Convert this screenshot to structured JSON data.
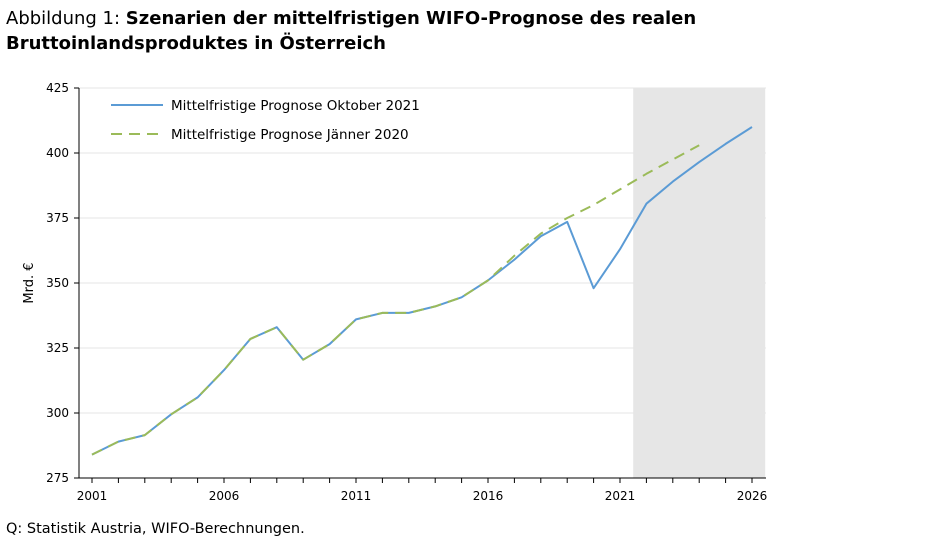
{
  "title": {
    "prefix": "Abbildung 1: ",
    "main": "Szenarien der mittelfristigen WIFO-Prognose des realen Bruttoinlandsproduktes in Österreich"
  },
  "source": "Q: Statistik Austria, WIFO-Berechnungen.",
  "chart_data": {
    "type": "line",
    "ylabel": "Mrd. €",
    "ylim": [
      275,
      425
    ],
    "yticks": [
      275,
      300,
      325,
      350,
      375,
      400,
      425
    ],
    "xlim": [
      2001,
      2026
    ],
    "xticks": [
      2001,
      2006,
      2011,
      2016,
      2021,
      2026
    ],
    "grid": true,
    "legend_position": "top-left",
    "shaded_region": {
      "from": 2021.5,
      "to": 2026.5,
      "color": "#e6e6e6"
    },
    "series": [
      {
        "name": "Mittelfristige Prognose Oktober 2021",
        "color": "#5b9bd5",
        "dash": "solid",
        "x": [
          2001,
          2002,
          2003,
          2004,
          2005,
          2006,
          2007,
          2008,
          2009,
          2010,
          2011,
          2012,
          2013,
          2014,
          2015,
          2016,
          2017,
          2018,
          2019,
          2020,
          2021,
          2022,
          2023,
          2024,
          2025,
          2026
        ],
        "values": [
          284,
          289,
          291.5,
          299.5,
          306,
          316.5,
          328.5,
          333,
          320.5,
          326.5,
          336,
          338.5,
          338.5,
          341,
          344.5,
          351,
          359,
          368,
          373.5,
          348,
          363,
          380.5,
          389,
          396.5,
          403.5,
          410
        ]
      },
      {
        "name": "Mittelfristige Prognose Jänner 2020",
        "color": "#9bbb59",
        "dash": "dashed",
        "x": [
          2001,
          2002,
          2003,
          2004,
          2005,
          2006,
          2007,
          2008,
          2009,
          2010,
          2011,
          2012,
          2013,
          2014,
          2015,
          2016,
          2017,
          2018,
          2019,
          2020,
          2021,
          2022,
          2023,
          2024
        ],
        "values": [
          284,
          289,
          291.5,
          299.5,
          306,
          316.5,
          328.5,
          333,
          320.5,
          326.5,
          336,
          338.5,
          338.5,
          341,
          344.5,
          351,
          360.5,
          369,
          375,
          380,
          386,
          392,
          397.5,
          403
        ]
      }
    ]
  }
}
